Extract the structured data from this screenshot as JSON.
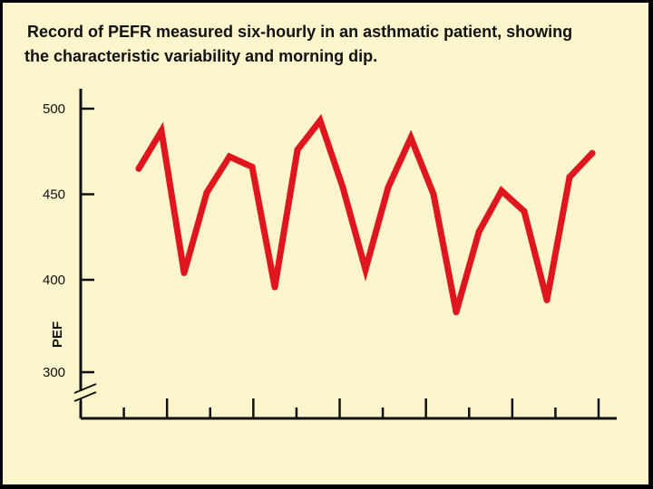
{
  "title_line1": "Record of PEFR measured six-hourly in an asthmatic patient, showing",
  "title_line2": "the characteristic variability and morning dip.",
  "chart_data": {
    "type": "line",
    "ylabel": "PEF",
    "xlabel": "",
    "y_ticks": [
      300,
      400,
      450,
      500
    ],
    "y_axis_break": true,
    "ylim": [
      300,
      500
    ],
    "x_tick_count": 13,
    "line_color": "#e0161e",
    "series": [
      {
        "values": [
          465,
          487,
          404,
          451,
          472,
          466,
          392,
          476,
          493,
          454,
          406,
          454,
          483,
          450,
          365,
          428,
          452,
          440,
          378,
          460,
          474
        ]
      }
    ]
  },
  "colors": {
    "background": "#fdf5cc",
    "frame": "#000000"
  }
}
